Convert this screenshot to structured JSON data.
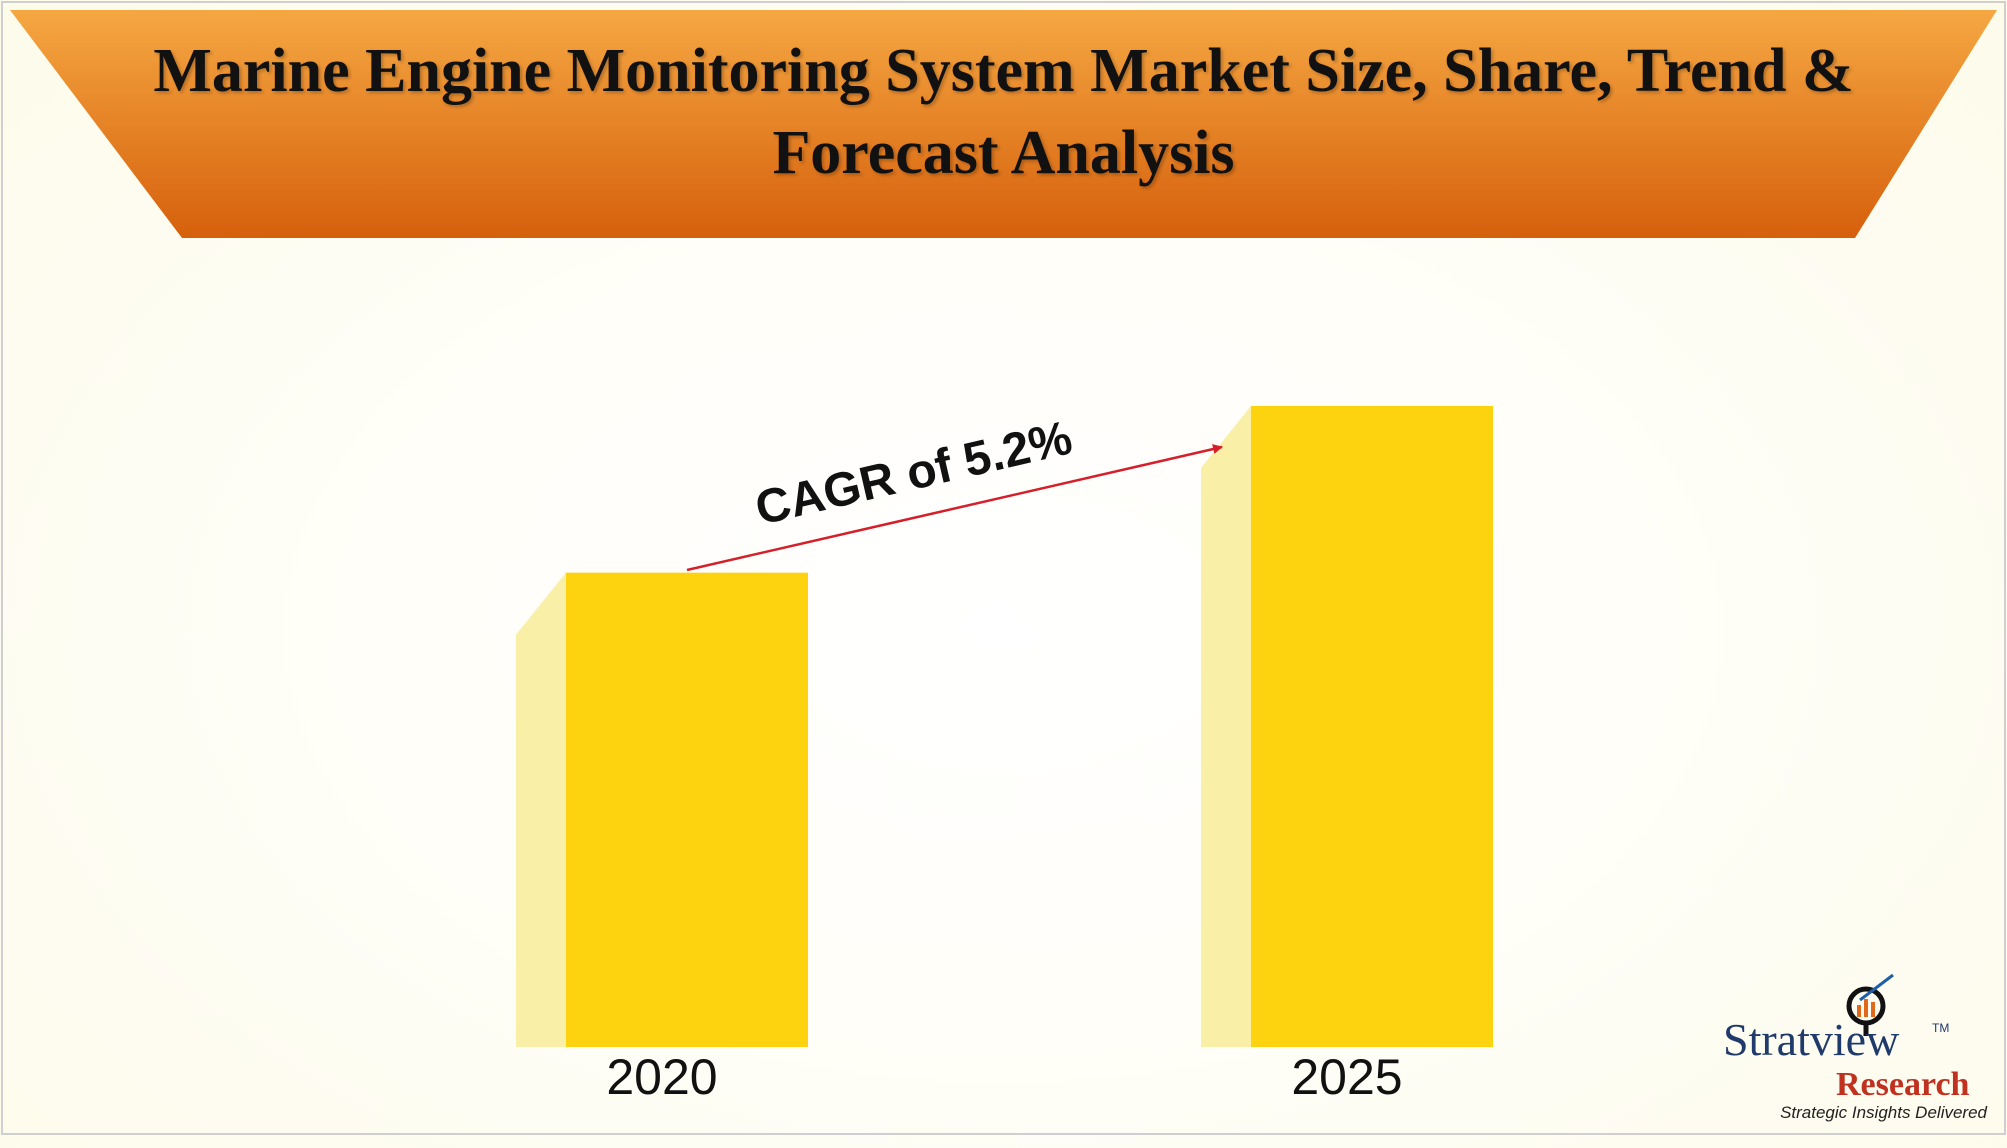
{
  "chart_data": {
    "type": "bar",
    "title": "Marine Engine Monitoring System Market Size, Share, Trend & Forecast Analysis",
    "categories": [
      "2020",
      "2025"
    ],
    "values": [
      74,
      100
    ],
    "color": "#fdd20e",
    "side_color": "#f9efa6",
    "annotation": "CAGR of 5.2%"
  },
  "logo": {
    "name": "Stratview",
    "tm": "TM",
    "sub": "Research",
    "tagline": "Strategic Insights Delivered"
  }
}
